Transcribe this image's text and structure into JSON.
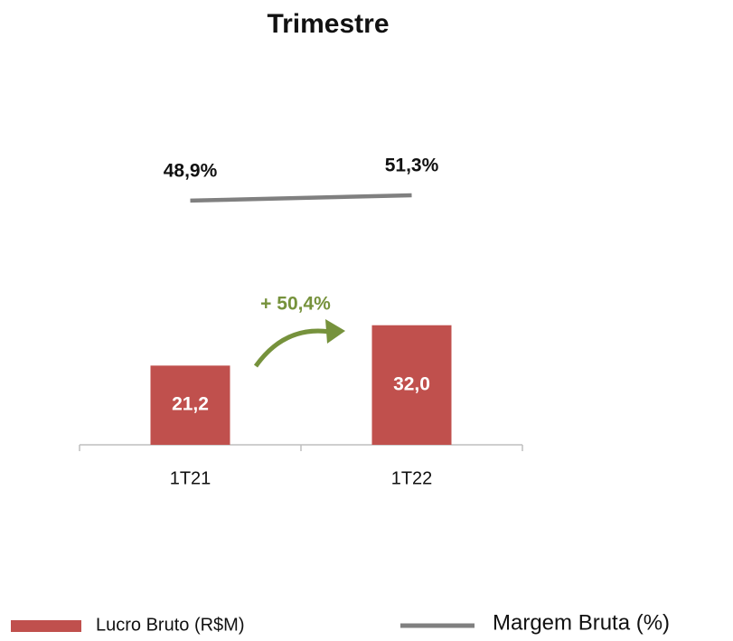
{
  "chart_data": {
    "type": "bar",
    "title": "Trimestre",
    "categories": [
      "1T21",
      "1T22"
    ],
    "series": [
      {
        "name": "Lucro Bruto (R$M)",
        "type": "bar",
        "color": "#c0504d",
        "values": [
          21.2,
          32.0
        ],
        "value_labels": [
          "21,2",
          "32,0"
        ]
      },
      {
        "name": "Margem Bruta (%)",
        "type": "line",
        "axis": "y2",
        "color": "#808080",
        "values": [
          48.9,
          51.3
        ],
        "value_labels": [
          "48,9%",
          "51,3%"
        ]
      }
    ],
    "ylim": [
      0,
      90
    ],
    "y2lim": [
      -60,
      90
    ],
    "annotations": [
      "+ 50,4%"
    ],
    "annotation_color": "#76923c",
    "legend": "bottom"
  }
}
